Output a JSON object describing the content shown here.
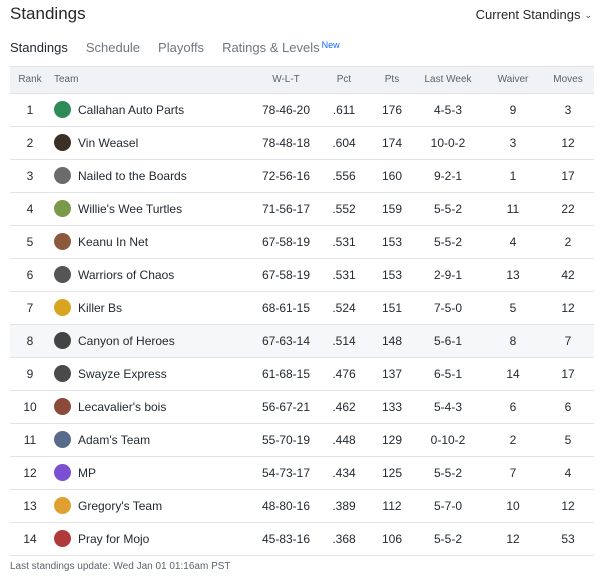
{
  "header": {
    "title": "Standings",
    "view_select": "Current Standings"
  },
  "tabs": [
    {
      "label": "Standings",
      "active": true
    },
    {
      "label": "Schedule"
    },
    {
      "label": "Playoffs"
    },
    {
      "label": "Ratings & Levels",
      "badge": "New"
    }
  ],
  "columns": {
    "rank": "Rank",
    "team": "Team",
    "wlt": "W-L-T",
    "pct": "Pct",
    "pts": "Pts",
    "last_week": "Last Week",
    "waiver": "Waiver",
    "moves": "Moves"
  },
  "rows": [
    {
      "rank": "1",
      "team": "Callahan Auto Parts",
      "wlt": "78-46-20",
      "pct": ".611",
      "pts": "176",
      "last_week": "4-5-3",
      "waiver": "9",
      "moves": "3",
      "logo_color": "#2e8b57",
      "logo_icon": "car-logo-icon"
    },
    {
      "rank": "2",
      "team": "Vin Weasel",
      "wlt": "78-48-18",
      "pct": ".604",
      "pts": "174",
      "last_week": "10-0-2",
      "waiver": "3",
      "moves": "12",
      "logo_color": "#3a3024",
      "logo_icon": "photo-avatar-icon"
    },
    {
      "rank": "3",
      "team": "Nailed to the Boards",
      "wlt": "72-56-16",
      "pct": ".556",
      "pts": "160",
      "last_week": "9-2-1",
      "waiver": "1",
      "moves": "17",
      "logo_color": "#6b6b6b",
      "logo_icon": "photo-avatar-icon"
    },
    {
      "rank": "4",
      "team": "Willie's Wee Turtles",
      "wlt": "71-56-17",
      "pct": ".552",
      "pts": "159",
      "last_week": "5-5-2",
      "waiver": "11",
      "moves": "22",
      "logo_color": "#7a9a4a",
      "logo_icon": "photo-avatar-icon"
    },
    {
      "rank": "5",
      "team": "Keanu In Net",
      "wlt": "67-58-19",
      "pct": ".531",
      "pts": "153",
      "last_week": "5-5-2",
      "waiver": "4",
      "moves": "2",
      "logo_color": "#8b5a3c",
      "logo_icon": "photo-avatar-icon"
    },
    {
      "rank": "6",
      "team": "Warriors of Chaos",
      "wlt": "67-58-19",
      "pct": ".531",
      "pts": "153",
      "last_week": "2-9-1",
      "waiver": "13",
      "moves": "42",
      "logo_color": "#555555",
      "logo_icon": "robot-logo-icon"
    },
    {
      "rank": "7",
      "team": "Killer Bs",
      "wlt": "68-61-15",
      "pct": ".524",
      "pts": "151",
      "last_week": "7-5-0",
      "waiver": "5",
      "moves": "12",
      "logo_color": "#d9a520",
      "logo_icon": "face-logo-icon"
    },
    {
      "rank": "8",
      "team": "Canyon of Heroes",
      "wlt": "67-63-14",
      "pct": ".514",
      "pts": "148",
      "last_week": "5-6-1",
      "waiver": "8",
      "moves": "7",
      "logo_color": "#444444",
      "logo_icon": "robot-logo-icon",
      "highlighted": true
    },
    {
      "rank": "9",
      "team": "Swayze Express",
      "wlt": "61-68-15",
      "pct": ".476",
      "pts": "137",
      "last_week": "6-5-1",
      "waiver": "14",
      "moves": "17",
      "logo_color": "#4a4a4a",
      "logo_icon": "photo-avatar-icon"
    },
    {
      "rank": "10",
      "team": "Lecavalier's bois",
      "wlt": "56-67-21",
      "pct": ".462",
      "pts": "133",
      "last_week": "5-4-3",
      "waiver": "6",
      "moves": "6",
      "logo_color": "#8b4a3a",
      "logo_icon": "photo-avatar-icon"
    },
    {
      "rank": "11",
      "team": "Adam's Team",
      "wlt": "55-70-19",
      "pct": ".448",
      "pts": "129",
      "last_week": "0-10-2",
      "waiver": "2",
      "moves": "5",
      "logo_color": "#5a6a8a",
      "logo_icon": "robot-logo-icon"
    },
    {
      "rank": "12",
      "team": "MP",
      "wlt": "54-73-17",
      "pct": ".434",
      "pts": "125",
      "last_week": "5-5-2",
      "waiver": "7",
      "moves": "4",
      "logo_color": "#7b4fd1",
      "logo_icon": "monster-logo-icon"
    },
    {
      "rank": "13",
      "team": "Gregory's Team",
      "wlt": "48-80-16",
      "pct": ".389",
      "pts": "112",
      "last_week": "5-7-0",
      "waiver": "10",
      "moves": "12",
      "logo_color": "#e0a030",
      "logo_icon": "face-logo-icon"
    },
    {
      "rank": "14",
      "team": "Pray for Mojo",
      "wlt": "45-83-16",
      "pct": ".368",
      "pts": "106",
      "last_week": "5-5-2",
      "waiver": "12",
      "moves": "53",
      "logo_color": "#b03a3a",
      "logo_icon": "photo-avatar-icon"
    }
  ],
  "footer": "Last standings update: Wed Jan 01 01:16am PST"
}
